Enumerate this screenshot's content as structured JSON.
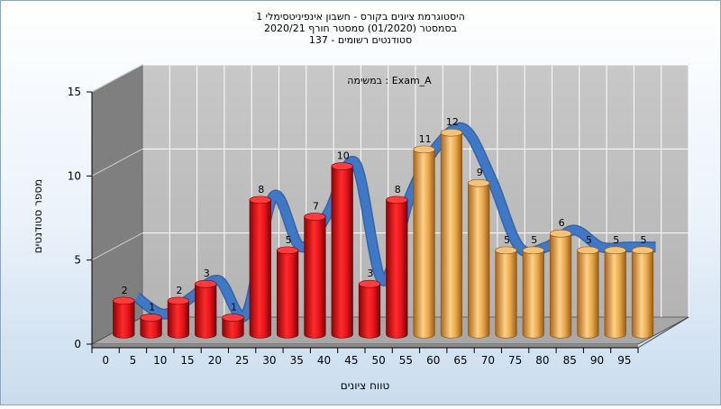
{
  "chart_data": {
    "type": "bar",
    "title_lines": [
      "היסטוגרמת ציונים בקורס - חשבון אינפיניטסימלי 1",
      "בסמסטר  (01/2020)  סמסטר חורף  2020/21",
      "137 - סטודנטים רשומים"
    ],
    "annotation": "במשימה : Exam_A",
    "xlabel": "טווח ציונים",
    "ylabel": "מספר סטודנטים",
    "ylim": [
      0,
      15
    ],
    "yticks": [
      0,
      5,
      10,
      15
    ],
    "categories": [
      "0",
      "5",
      "10",
      "15",
      "20",
      "25",
      "30",
      "35",
      "40",
      "45",
      "50",
      "55",
      "60",
      "65",
      "70",
      "75",
      "80",
      "85",
      "90",
      "95"
    ],
    "values": [
      2,
      1,
      2,
      3,
      1,
      8,
      5,
      7,
      10,
      3,
      8,
      11,
      12,
      9,
      5,
      5,
      6,
      5,
      5,
      5
    ],
    "colors": {
      "fail": "#e8141c",
      "pass": "#e8a84a",
      "curve": "#3f78c6",
      "wall": "#c0c0c0",
      "side_wall": "#7f7f7f",
      "floor": "#a8a8a8"
    },
    "fail_below": 55,
    "grid": true,
    "legend": "none"
  }
}
